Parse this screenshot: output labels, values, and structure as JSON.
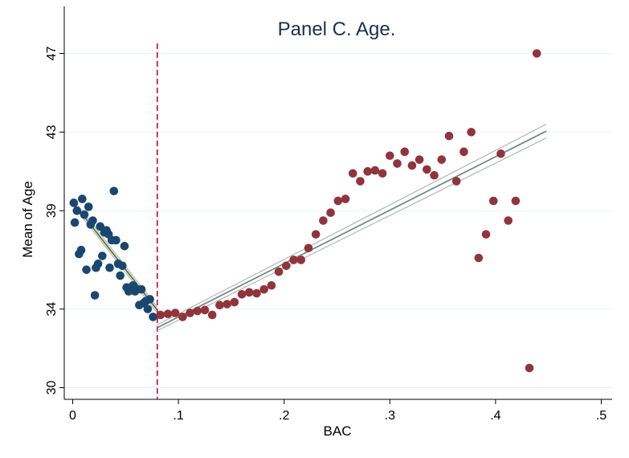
{
  "chart_data": {
    "type": "scatter",
    "title": "Panel C. Age.",
    "xlabel": "BAC",
    "ylabel": "Mean of Age",
    "xlim": [
      0,
      0.5
    ],
    "ylim": [
      30,
      47
    ],
    "x_ticks": [
      {
        "value": 0,
        "label": "0"
      },
      {
        "value": 0.1,
        "label": ".1"
      },
      {
        "value": 0.2,
        "label": ".2"
      },
      {
        "value": 0.3,
        "label": ".3"
      },
      {
        "value": 0.4,
        "label": ".4"
      },
      {
        "value": 0.5,
        "label": ".5"
      }
    ],
    "y_ticks": [
      {
        "value": 30,
        "label": "30"
      },
      {
        "value": 34,
        "label": "34"
      },
      {
        "value": 39,
        "label": "39"
      },
      {
        "value": 43,
        "label": "43"
      },
      {
        "value": 47,
        "label": "47"
      }
    ],
    "grid": true,
    "threshold": 0.08,
    "colors": {
      "left_points": "#1a476f",
      "right_points": "#90353b",
      "left_fit": "#55752f",
      "right_fit": "#6e8e84",
      "ci": "#b8b8b8",
      "threshold": "#c10534",
      "grid": "#eaf2f3",
      "title": "#1e2f4f"
    },
    "series": [
      {
        "points": [
          [
            0.001,
            39.4
          ],
          [
            0.002,
            38.4
          ],
          [
            0.004,
            39.0
          ],
          [
            0.006,
            36.8
          ],
          [
            0.008,
            37.0
          ],
          [
            0.009,
            39.6
          ],
          [
            0.011,
            38.8
          ],
          [
            0.013,
            36.0
          ],
          [
            0.015,
            39.2
          ],
          [
            0.017,
            38.3
          ],
          [
            0.019,
            38.5
          ],
          [
            0.021,
            34.7
          ],
          [
            0.022,
            36.1
          ],
          [
            0.024,
            36.3
          ],
          [
            0.026,
            38.2
          ],
          [
            0.028,
            36.7
          ],
          [
            0.03,
            37.9
          ],
          [
            0.032,
            38.0
          ],
          [
            0.034,
            37.8
          ],
          [
            0.035,
            36.1
          ],
          [
            0.037,
            37.5
          ],
          [
            0.039,
            40.0
          ],
          [
            0.041,
            37.5
          ],
          [
            0.043,
            36.3
          ],
          [
            0.045,
            35.7
          ],
          [
            0.047,
            36.2
          ],
          [
            0.049,
            37.2
          ],
          [
            0.051,
            35.1
          ],
          [
            0.053,
            34.9
          ],
          [
            0.055,
            35.0
          ],
          [
            0.057,
            35.2
          ],
          [
            0.059,
            34.9
          ],
          [
            0.061,
            35.0
          ],
          [
            0.063,
            34.2
          ],
          [
            0.065,
            35.0
          ],
          [
            0.067,
            34.3
          ],
          [
            0.069,
            34.4
          ],
          [
            0.071,
            34.0
          ],
          [
            0.073,
            34.5
          ],
          [
            0.076,
            33.6
          ]
        ],
        "fit": [
          [
            0.0,
            39.45
          ],
          [
            0.08,
            33.95
          ]
        ]
      },
      {
        "points": [
          [
            0.083,
            33.7
          ],
          [
            0.09,
            33.75
          ],
          [
            0.097,
            33.8
          ],
          [
            0.104,
            33.6
          ],
          [
            0.111,
            33.8
          ],
          [
            0.118,
            33.9
          ],
          [
            0.125,
            33.95
          ],
          [
            0.132,
            33.7
          ],
          [
            0.139,
            34.2
          ],
          [
            0.146,
            34.25
          ],
          [
            0.153,
            34.35
          ],
          [
            0.16,
            34.75
          ],
          [
            0.167,
            34.85
          ],
          [
            0.174,
            34.8
          ],
          [
            0.181,
            35.0
          ],
          [
            0.188,
            35.2
          ],
          [
            0.195,
            35.9
          ],
          [
            0.202,
            36.2
          ],
          [
            0.209,
            36.5
          ],
          [
            0.216,
            36.5
          ],
          [
            0.223,
            37.1
          ],
          [
            0.23,
            37.8
          ],
          [
            0.237,
            38.5
          ],
          [
            0.244,
            38.9
          ],
          [
            0.251,
            39.5
          ],
          [
            0.258,
            39.6
          ],
          [
            0.265,
            40.9
          ],
          [
            0.272,
            40.5
          ],
          [
            0.279,
            41.0
          ],
          [
            0.286,
            41.05
          ],
          [
            0.293,
            40.9
          ],
          [
            0.3,
            41.8
          ],
          [
            0.307,
            41.4
          ],
          [
            0.314,
            42.0
          ],
          [
            0.321,
            41.3
          ],
          [
            0.328,
            41.6
          ],
          [
            0.335,
            41.1
          ],
          [
            0.342,
            40.8
          ],
          [
            0.349,
            41.6
          ],
          [
            0.356,
            42.8
          ],
          [
            0.363,
            40.5
          ],
          [
            0.37,
            42.0
          ],
          [
            0.377,
            43.0
          ],
          [
            0.384,
            36.6
          ],
          [
            0.391,
            37.8
          ],
          [
            0.398,
            39.5
          ],
          [
            0.405,
            41.9
          ],
          [
            0.412,
            38.5
          ],
          [
            0.419,
            39.5
          ],
          [
            0.432,
            31.0
          ],
          [
            0.439,
            47.0
          ]
        ],
        "fit": [
          [
            0.08,
            33.05
          ],
          [
            0.448,
            43.05
          ]
        ]
      }
    ]
  }
}
